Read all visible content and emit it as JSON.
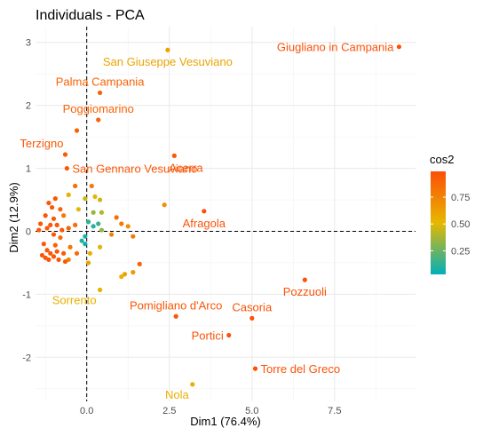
{
  "chart_data": {
    "type": "scatter",
    "title": "Individuals - PCA",
    "xlabel": "Dim1 (76.4%)",
    "ylabel": "Dim2 (12.9%)",
    "xlim": [
      -1.55,
      9.95
    ],
    "ylim": [
      -2.7,
      3.25
    ],
    "xticks": [
      0.0,
      2.5,
      5.0,
      7.5
    ],
    "xtick_labels": [
      "0.0",
      "2.5",
      "5.0",
      "7.5"
    ],
    "yticks": [
      -2,
      -1,
      0,
      1,
      2,
      3
    ],
    "ytick_labels": [
      "-2",
      "-1",
      "0",
      "1",
      "2",
      "3"
    ],
    "grid": true,
    "reference_lines": {
      "x": 0,
      "y": 0
    },
    "color_variable": "cos2",
    "legend": {
      "title": "cos2",
      "position": "right",
      "ticks": [
        0.25,
        0.5,
        0.75
      ],
      "tick_labels": [
        "0.25",
        "0.50",
        "0.75"
      ],
      "range": [
        0.03,
        0.99
      ],
      "gradient": [
        "#00AFBB",
        "#E7B800",
        "#FC4E07"
      ]
    },
    "points": [
      {
        "x": 9.45,
        "y": 2.93,
        "cos2": 0.97,
        "label": "Giugliano in Campania",
        "label_pos": "left"
      },
      {
        "x": 2.45,
        "y": 2.88,
        "cos2": 0.6,
        "label": "San Giuseppe Vesuviano",
        "label_pos": "below"
      },
      {
        "x": 0.4,
        "y": 2.2,
        "cos2": 0.9,
        "label": "Palma Campania",
        "label_pos": "above"
      },
      {
        "x": 0.35,
        "y": 1.77,
        "cos2": 0.9,
        "label": "Poggiomarino",
        "label_pos": "above"
      },
      {
        "x": -0.3,
        "y": 1.6,
        "cos2": 0.9,
        "label": null
      },
      {
        "x": -0.65,
        "y": 1.22,
        "cos2": 0.95,
        "label": "Terzigno",
        "label_pos": "above-left"
      },
      {
        "x": -0.6,
        "y": 1.0,
        "cos2": 0.95,
        "label": "San Gennaro Vesuviano",
        "label_pos": "right"
      },
      {
        "x": 2.65,
        "y": 1.2,
        "cos2": 0.95,
        "label": "Acerra",
        "label_pos": "below-right"
      },
      {
        "x": 3.55,
        "y": 0.32,
        "cos2": 0.97,
        "label": "Afragola",
        "label_pos": "below"
      },
      {
        "x": 2.35,
        "y": 0.42,
        "cos2": 0.7,
        "label": null
      },
      {
        "x": 6.6,
        "y": -0.77,
        "cos2": 0.97,
        "label": "Pozzuoli",
        "label_pos": "below"
      },
      {
        "x": 5.0,
        "y": -1.38,
        "cos2": 0.97,
        "label": "Casoria",
        "label_pos": "above"
      },
      {
        "x": 2.7,
        "y": -1.35,
        "cos2": 0.95,
        "label": "Pomigliano d'Arco",
        "label_pos": "above"
      },
      {
        "x": 4.3,
        "y": -1.65,
        "cos2": 0.97,
        "label": "Portici",
        "label_pos": "left"
      },
      {
        "x": 5.1,
        "y": -2.18,
        "cos2": 0.97,
        "label": "Torre del Greco",
        "label_pos": "right"
      },
      {
        "x": 3.2,
        "y": -2.43,
        "cos2": 0.55,
        "label": "Nola",
        "label_pos": "below-left"
      },
      {
        "x": 0.4,
        "y": -0.93,
        "cos2": 0.55,
        "label": "Sorrento",
        "label_pos": "below-left"
      },
      {
        "x": 1.6,
        "y": -0.52,
        "cos2": 0.9,
        "label": null
      },
      {
        "x": 1.15,
        "y": -0.68,
        "cos2": 0.6,
        "label": null
      },
      {
        "x": 1.05,
        "y": -0.72,
        "cos2": 0.55,
        "label": null
      },
      {
        "x": 1.4,
        "y": -0.65,
        "cos2": 0.65,
        "label": null
      },
      {
        "x": 0.9,
        "y": 0.22,
        "cos2": 0.85,
        "label": null
      },
      {
        "x": 1.05,
        "y": 0.12,
        "cos2": 0.8,
        "label": null
      },
      {
        "x": 1.25,
        "y": 0.08,
        "cos2": 0.7,
        "label": null
      },
      {
        "x": 0.75,
        "y": -0.05,
        "cos2": 0.75,
        "label": null
      },
      {
        "x": 1.4,
        "y": -0.08,
        "cos2": 0.8,
        "label": null
      },
      {
        "x": -0.35,
        "y": 0.72,
        "cos2": 0.85,
        "label": null
      },
      {
        "x": -0.55,
        "y": 0.58,
        "cos2": 0.55,
        "label": null
      },
      {
        "x": -0.05,
        "y": 0.52,
        "cos2": 0.45,
        "label": null
      },
      {
        "x": 0.15,
        "y": 0.72,
        "cos2": 0.8,
        "label": null
      },
      {
        "x": 0.25,
        "y": 0.55,
        "cos2": 0.5,
        "label": null
      },
      {
        "x": 0.4,
        "y": 0.5,
        "cos2": 0.45,
        "label": null
      },
      {
        "x": 0.45,
        "y": 0.3,
        "cos2": 0.4,
        "label": null
      },
      {
        "x": 0.2,
        "y": 0.3,
        "cos2": 0.35,
        "label": null
      },
      {
        "x": 0.05,
        "y": 0.15,
        "cos2": 0.12,
        "label": null
      },
      {
        "x": 0.2,
        "y": 0.08,
        "cos2": 0.1,
        "label": null
      },
      {
        "x": 0.35,
        "y": 0.12,
        "cos2": 0.15,
        "label": null
      },
      {
        "x": 0.45,
        "y": 0.02,
        "cos2": 0.35,
        "label": null
      },
      {
        "x": -0.05,
        "y": -0.08,
        "cos2": 0.08,
        "label": null
      },
      {
        "x": -0.05,
        "y": -0.2,
        "cos2": 0.05,
        "label": null
      },
      {
        "x": -0.15,
        "y": -0.15,
        "cos2": 0.1,
        "label": null
      },
      {
        "x": 0.1,
        "y": -0.35,
        "cos2": 0.55,
        "label": null
      },
      {
        "x": 0.05,
        "y": -0.5,
        "cos2": 0.6,
        "label": null
      },
      {
        "x": 0.4,
        "y": -0.25,
        "cos2": 0.5,
        "label": null
      },
      {
        "x": -0.25,
        "y": 0.35,
        "cos2": 0.5,
        "label": null
      },
      {
        "x": -0.8,
        "y": 0.35,
        "cos2": 0.9,
        "label": null
      },
      {
        "x": -0.7,
        "y": 0.25,
        "cos2": 0.8,
        "label": null
      },
      {
        "x": -0.35,
        "y": 0.1,
        "cos2": 0.85,
        "label": null
      },
      {
        "x": -0.55,
        "y": 0.05,
        "cos2": 0.9,
        "label": null
      },
      {
        "x": -0.8,
        "y": -0.1,
        "cos2": 0.85,
        "label": null
      },
      {
        "x": -0.5,
        "y": -0.25,
        "cos2": 0.8,
        "label": null
      },
      {
        "x": -0.3,
        "y": -0.35,
        "cos2": 0.85,
        "label": null
      },
      {
        "x": -0.55,
        "y": -0.45,
        "cos2": 0.75,
        "label": null
      },
      {
        "x": -0.95,
        "y": -0.22,
        "cos2": 0.9,
        "label": null
      },
      {
        "x": -1.05,
        "y": 0.38,
        "cos2": 0.95,
        "label": null
      },
      {
        "x": -1.25,
        "y": 0.25,
        "cos2": 0.95,
        "label": null
      },
      {
        "x": -1.4,
        "y": 0.12,
        "cos2": 0.95,
        "label": null
      },
      {
        "x": -1.45,
        "y": 0.02,
        "cos2": 0.95,
        "label": null
      },
      {
        "x": -1.2,
        "y": 0.05,
        "cos2": 0.95,
        "label": null
      },
      {
        "x": -1.1,
        "y": 0.1,
        "cos2": 0.95,
        "label": null
      },
      {
        "x": -1.0,
        "y": 0.2,
        "cos2": 0.95,
        "label": null
      },
      {
        "x": -0.9,
        "y": 0.1,
        "cos2": 0.95,
        "label": null
      },
      {
        "x": -1.15,
        "y": 0.45,
        "cos2": 0.95,
        "label": null
      },
      {
        "x": -0.95,
        "y": 0.52,
        "cos2": 0.95,
        "label": null
      },
      {
        "x": -1.3,
        "y": -0.2,
        "cos2": 0.95,
        "label": null
      },
      {
        "x": -1.2,
        "y": -0.3,
        "cos2": 0.95,
        "label": null
      },
      {
        "x": -1.35,
        "y": -0.38,
        "cos2": 0.95,
        "label": null
      },
      {
        "x": -1.25,
        "y": -0.42,
        "cos2": 0.95,
        "label": null
      },
      {
        "x": -1.1,
        "y": -0.35,
        "cos2": 0.95,
        "label": null
      },
      {
        "x": -1.0,
        "y": -0.4,
        "cos2": 0.95,
        "label": null
      },
      {
        "x": -1.15,
        "y": -0.45,
        "cos2": 0.95,
        "label": null
      },
      {
        "x": -0.9,
        "y": -0.32,
        "cos2": 0.95,
        "label": null
      },
      {
        "x": -0.85,
        "y": -0.45,
        "cos2": 0.95,
        "label": null
      },
      {
        "x": -0.7,
        "y": -0.35,
        "cos2": 0.95,
        "label": null
      },
      {
        "x": -0.65,
        "y": -0.48,
        "cos2": 0.95,
        "label": null
      },
      {
        "x": -1.0,
        "y": -0.05,
        "cos2": 0.95,
        "label": null
      },
      {
        "x": -0.75,
        "y": 0.02,
        "cos2": 0.95,
        "label": null
      }
    ]
  }
}
